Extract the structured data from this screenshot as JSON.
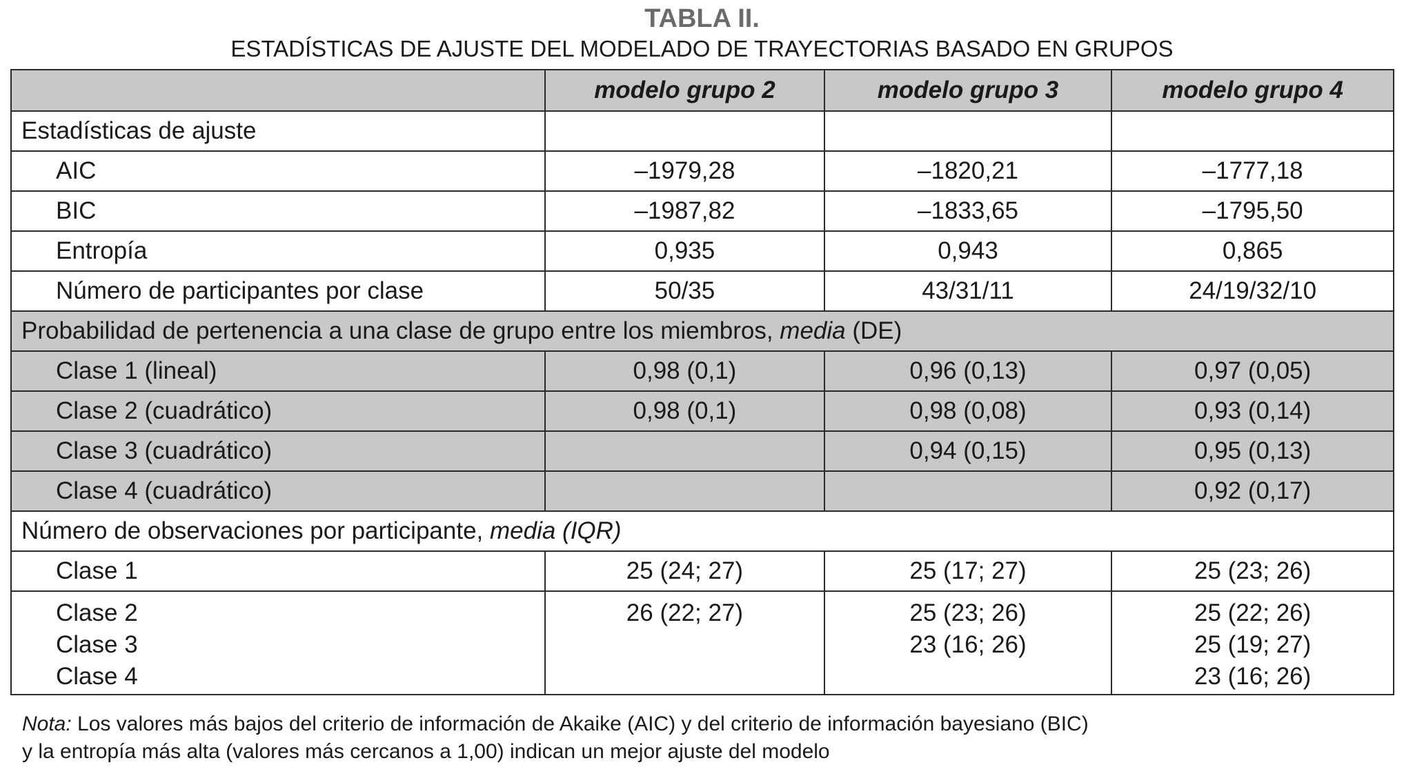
{
  "title": "TABLA II.",
  "subtitle": "ESTADÍSTICAS DE AJUSTE DEL MODELADO DE TRAYECTORIAS BASADO EN GRUPOS",
  "headers": [
    "",
    "modelo grupo 2",
    "modelo grupo 3",
    "modelo grupo 4"
  ],
  "section1": "Estadísticas de ajuste",
  "rows1": [
    [
      "AIC",
      "–1979,28",
      "–1820,21",
      "–1777,18"
    ],
    [
      "BIC",
      "–1987,82",
      "–1833,65",
      "–1795,50"
    ],
    [
      "Entropía",
      "0,935",
      "0,943",
      "0,865"
    ],
    [
      "Número de participantes por clase",
      "50/35",
      "43/31/11",
      "24/19/32/10"
    ]
  ],
  "section2": {
    "text": "Probabilidad de pertenencia a una clase de grupo entre los miembros, ",
    "italic": "media",
    "after": " (DE)"
  },
  "rows2": [
    [
      "Clase 1 (lineal)",
      "0,98 (0,1)",
      "0,96 (0,13)",
      "0,97 (0,05)"
    ],
    [
      "Clase 2 (cuadrático)",
      "0,98 (0,1)",
      "0,98 (0,08)",
      "0,93 (0,14)"
    ],
    [
      "Clase 3 (cuadrático)",
      "",
      "0,94 (0,15)",
      "0,95 (0,13)"
    ],
    [
      "Clase 4 (cuadrático)",
      "",
      "",
      "0,92 (0,17)"
    ]
  ],
  "section3": {
    "text": "Número de observaciones por participante, ",
    "italic": "media (IQR)"
  },
  "rows3": [
    [
      "Clase 1",
      "25 (24; 27)",
      "25 (17; 27)",
      "25 (23; 26)"
    ]
  ],
  "tall": {
    "labels": [
      "Clase 2",
      "Clase 3",
      "Clase 4"
    ],
    "g2": [
      "26 (22; 27)"
    ],
    "g3": [
      "25 (23; 26)",
      "23 (16; 26)"
    ],
    "g4": [
      "25 (22; 26)",
      "25 (19; 27)",
      "23 (16; 26)"
    ]
  },
  "note": {
    "label": "Nota:",
    "line1": " Los valores más bajos del criterio de información de Akaike (AIC) y del criterio de información bayesiano (BIC)",
    "line2": "y la entropía más alta (valores más cercanos a 1,00) indican un mejor ajuste del modelo"
  },
  "colors": {
    "header_gray": "#c8c8c8",
    "title_gray": "#6b6b6b"
  }
}
